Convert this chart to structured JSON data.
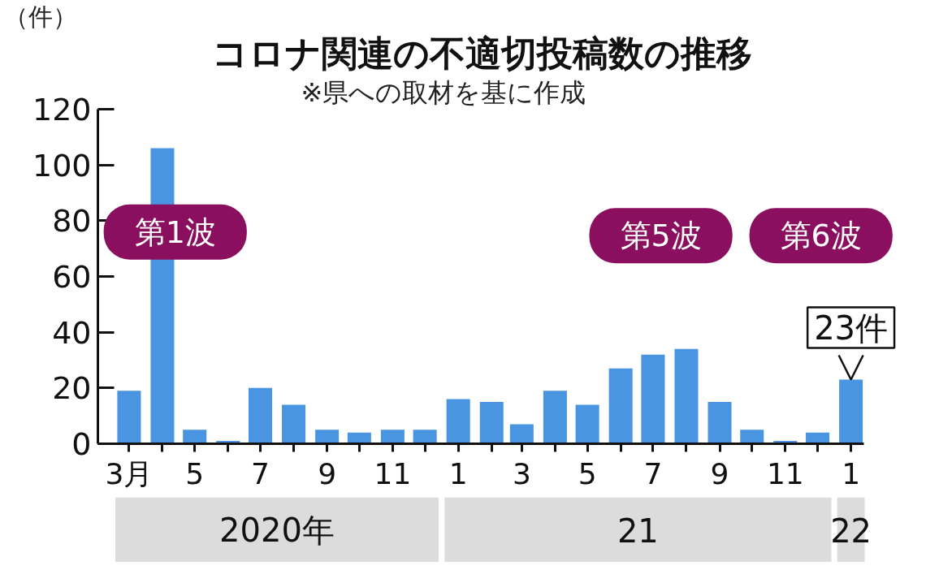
{
  "chart_data": {
    "type": "bar",
    "title": "コロナ関連の不適切投稿数の推移",
    "subtitle": "※県への取材を基に作成",
    "ylabel": "（件）",
    "x": [
      "2020-03",
      "2020-04",
      "2020-05",
      "2020-06",
      "2020-07",
      "2020-08",
      "2020-09",
      "2020-10",
      "2020-11",
      "2020-12",
      "2021-01",
      "2021-02",
      "2021-03",
      "2021-04",
      "2021-05",
      "2021-06",
      "2021-07",
      "2021-08",
      "2021-09",
      "2021-10",
      "2021-11",
      "2021-12",
      "2022-01"
    ],
    "values": [
      19,
      106,
      5,
      1,
      20,
      14,
      5,
      4,
      5,
      5,
      16,
      15,
      7,
      19,
      14,
      27,
      32,
      34,
      15,
      5,
      1,
      4,
      23
    ],
    "color": "#4a95e1",
    "value_labels": [
      null,
      null,
      null,
      null,
      null,
      null,
      null,
      null,
      null,
      null,
      null,
      null,
      null,
      null,
      null,
      null,
      null,
      null,
      null,
      null,
      null,
      null,
      "23件"
    ],
    "xlim": [
      "2020-02",
      "2022-01-13"
    ],
    "xticks": [
      {
        "value": "2020-03",
        "label": "3月"
      },
      {
        "value": "2020-04",
        "label": null
      },
      {
        "value": "2020-05",
        "label": "5"
      },
      {
        "value": "2020-06",
        "label": null
      },
      {
        "value": "2020-07",
        "label": "7"
      },
      {
        "value": "2020-08",
        "label": null
      },
      {
        "value": "2020-09",
        "label": "9"
      },
      {
        "value": "2020-10",
        "label": null
      },
      {
        "value": "2020-11",
        "label": "11"
      },
      {
        "value": "2020-12",
        "label": null
      },
      {
        "value": "2021-01",
        "label": "1"
      },
      {
        "value": "2021-02",
        "label": null
      },
      {
        "value": "2021-03",
        "label": "3"
      },
      {
        "value": "2021-04",
        "label": null
      },
      {
        "value": "2021-05",
        "label": "5"
      },
      {
        "value": "2021-06",
        "label": null
      },
      {
        "value": "2021-07",
        "label": "7"
      },
      {
        "value": "2021-08",
        "label": null
      },
      {
        "value": "2021-09",
        "label": "9"
      },
      {
        "value": "2021-10",
        "label": null
      },
      {
        "value": "2021-11",
        "label": "11"
      },
      {
        "value": "2021-12",
        "label": null
      },
      {
        "value": "2022-01",
        "label": "1"
      }
    ],
    "ylim": [
      0,
      120
    ],
    "yticks": [
      0,
      20,
      40,
      60,
      80,
      100,
      120
    ],
    "annotations": [
      "第1波",
      "第5波",
      "第6波",
      "2020年",
      "21",
      "22"
    ],
    "grid": false
  }
}
